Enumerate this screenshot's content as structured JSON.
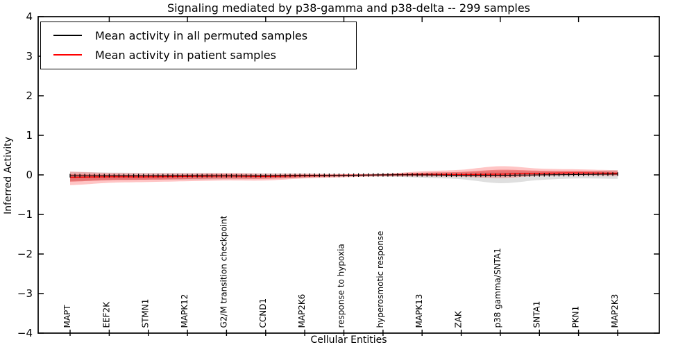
{
  "title": "Signaling mediated by p38-gamma and p38-delta -- 299 samples",
  "axes": {
    "xlabel": "Cellular Entities",
    "ylabel": "Inferred Activity"
  },
  "legend": {
    "entries": [
      {
        "label": "Mean activity in all permuted samples",
        "color": "#000000"
      },
      {
        "label": "Mean activity in patient samples",
        "color": "#ff0000"
      }
    ],
    "position": "upper left"
  },
  "colors": {
    "background": "#ffffff",
    "axis": "#000000",
    "permuted_line": "#000000",
    "patient_line": "#ff0000",
    "patient_band": "#ff4040",
    "permuted_band": "#aaaaaa"
  },
  "chart_data": {
    "type": "line",
    "title": "Signaling mediated by p38-gamma and p38-delta -- 299 samples",
    "xlabel": "Cellular Entities",
    "ylabel": "Inferred Activity",
    "ylim": [
      -4,
      4
    ],
    "yticks": [
      -4,
      -3,
      -2,
      -1,
      0,
      1,
      2,
      3,
      4
    ],
    "grid": false,
    "legend_position": "upper left",
    "categories": [
      "MAPT",
      "EEF2K",
      "STMN1",
      "MAPK12",
      "G2/M transition checkpoint",
      "CCND1",
      "MAP2K6",
      "response to hypoxia",
      "hyperosmotic response",
      "MAPK13",
      "ZAK",
      "p38 gamma/SNTA1",
      "SNTA1",
      "PKN1",
      "MAP2K3"
    ],
    "series": [
      {
        "name": "Mean activity in all permuted samples",
        "color": "#000000",
        "marker": "+",
        "values": [
          -0.02,
          -0.02,
          -0.02,
          -0.02,
          -0.02,
          -0.02,
          -0.01,
          -0.01,
          0.0,
          0.0,
          -0.01,
          -0.01,
          0.0,
          0.01,
          0.02
        ],
        "band_upper": [
          0.1,
          0.08,
          0.07,
          0.07,
          0.06,
          0.06,
          0.04,
          0.03,
          0.03,
          0.05,
          0.07,
          0.1,
          0.08,
          0.07,
          0.1
        ],
        "band_lower": [
          -0.14,
          -0.11,
          -0.1,
          -0.1,
          -0.09,
          -0.08,
          -0.06,
          -0.04,
          -0.04,
          -0.07,
          -0.1,
          -0.2,
          -0.13,
          -0.1,
          -0.12
        ],
        "band_color": "#aaaaaa"
      },
      {
        "name": "Mean activity in patient samples",
        "color": "#ff0000",
        "marker": "none",
        "values": [
          -0.06,
          -0.05,
          -0.05,
          -0.04,
          -0.03,
          -0.04,
          -0.02,
          -0.01,
          0.0,
          0.01,
          0.01,
          0.02,
          0.04,
          0.05,
          0.04
        ],
        "band_upper": [
          0.14,
          0.1,
          0.09,
          0.08,
          0.08,
          0.07,
          0.05,
          0.03,
          0.03,
          0.08,
          0.12,
          0.2,
          0.12,
          0.09,
          0.08
        ],
        "band_lower": [
          -0.2,
          -0.15,
          -0.13,
          -0.12,
          -0.11,
          -0.1,
          -0.07,
          -0.05,
          -0.04,
          -0.05,
          -0.06,
          -0.1,
          -0.07,
          -0.06,
          -0.07
        ],
        "band_color": "#ff4040"
      }
    ]
  }
}
